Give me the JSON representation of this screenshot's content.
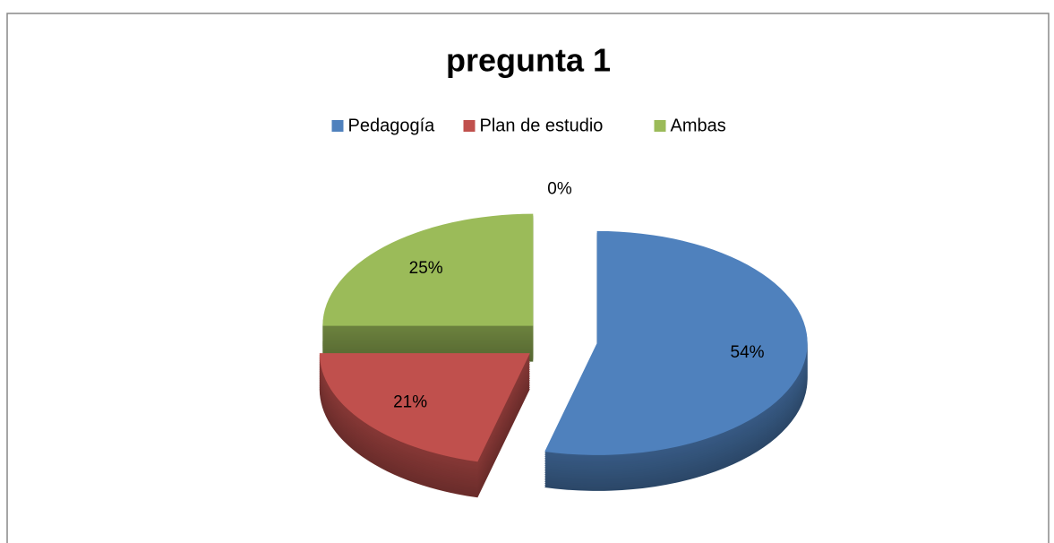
{
  "chart_data": {
    "type": "pie",
    "title": "pregunta 1",
    "categories": [
      "Pedagogía",
      "Plan de estudio",
      "Ambas",
      null
    ],
    "values": [
      54,
      21,
      25,
      0
    ],
    "value_labels": [
      "54%",
      "21%",
      "25%",
      "0%"
    ],
    "colors": [
      "#4f81bd",
      "#c0504d",
      "#9bbb59",
      "#8064a2"
    ],
    "legend": "top"
  }
}
